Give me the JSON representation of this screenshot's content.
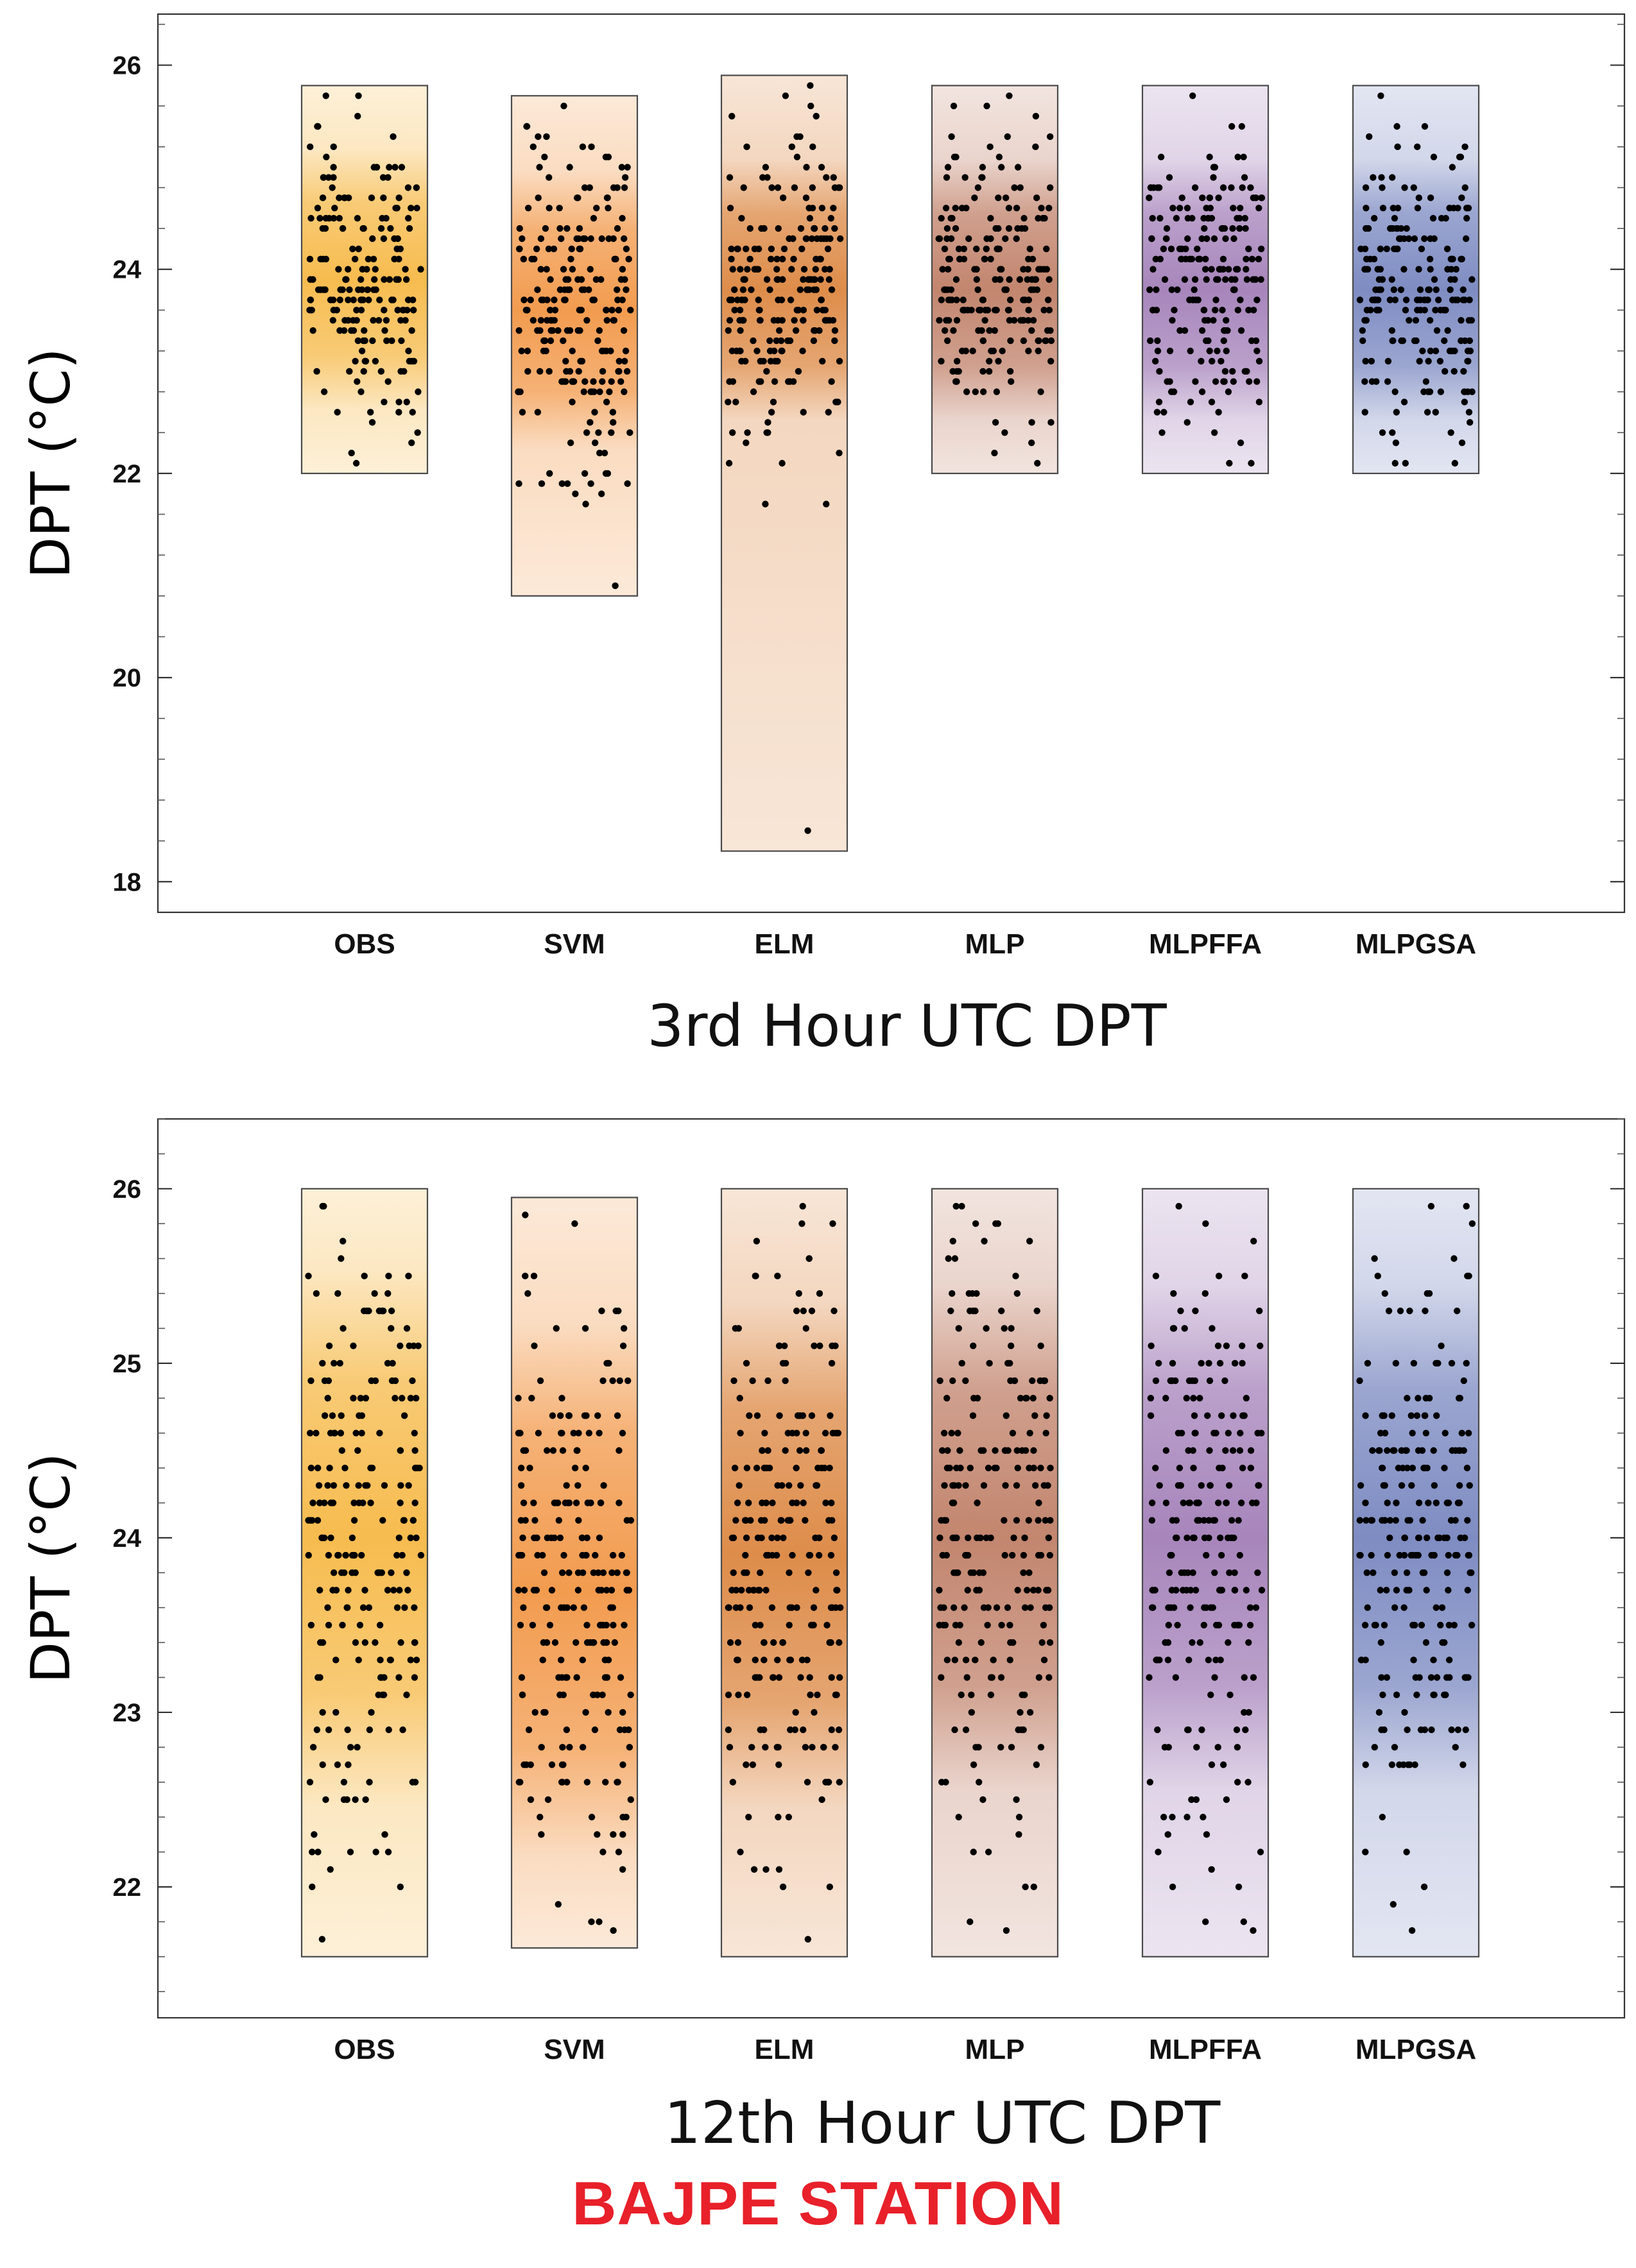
{
  "figure_title": "BAJPE STATION",
  "colors": {
    "title": "#e8202a",
    "OBS": "#f5b030",
    "SVM": "#f08a30",
    "ELM": "#d8782a",
    "MLP": "#b87055",
    "MLPFFA": "#9870b0",
    "MLPGSA": "#6878b8"
  },
  "chart_data": [
    {
      "type": "scatter",
      "subtype": "distribution-strip",
      "title": "3rd Hour UTC DPT",
      "xlabel": "3rd Hour UTC DPT",
      "ylabel": "DPT (°C)",
      "ylim": [
        17.7,
        26.5
      ],
      "yticks": [
        18,
        20,
        22,
        24,
        26
      ],
      "categories": [
        "OBS",
        "SVM",
        "ELM",
        "MLP",
        "MLPFFA",
        "MLPGSA"
      ],
      "series": [
        {
          "name": "OBS",
          "min": 22.0,
          "max": 25.8,
          "center": 23.9,
          "spread": 0.75,
          "points": 190,
          "outliers": [
            22.1,
            25.7
          ]
        },
        {
          "name": "SVM",
          "min": 20.8,
          "max": 25.7,
          "center": 23.6,
          "spread": 0.8,
          "points": 220,
          "outliers": [
            20.9,
            21.8,
            22.0,
            25.6
          ]
        },
        {
          "name": "ELM",
          "min": 18.3,
          "max": 25.9,
          "center": 23.8,
          "spread": 0.75,
          "points": 220,
          "outliers": [
            18.5,
            22.1,
            25.7
          ]
        },
        {
          "name": "MLP",
          "min": 22.0,
          "max": 25.8,
          "center": 23.8,
          "spread": 0.75,
          "points": 210,
          "outliers": [
            22.1,
            25.7
          ]
        },
        {
          "name": "MLPFFA",
          "min": 22.0,
          "max": 25.8,
          "center": 23.8,
          "spread": 0.75,
          "points": 210,
          "outliers": [
            22.1,
            25.7
          ]
        },
        {
          "name": "MLPGSA",
          "min": 22.0,
          "max": 25.8,
          "center": 23.8,
          "spread": 0.75,
          "points": 210,
          "outliers": [
            22.1,
            25.7
          ]
        }
      ]
    },
    {
      "type": "scatter",
      "subtype": "distribution-strip",
      "title": "12th Hour UTC DPT",
      "xlabel": "12th Hour UTC DPT",
      "ylabel": "DPT (°C)",
      "ylim": [
        21.25,
        26.4
      ],
      "yticks": [
        22,
        23,
        24,
        25,
        26
      ],
      "categories": [
        "OBS",
        "SVM",
        "ELM",
        "MLP",
        "MLPFFA",
        "MLPGSA"
      ],
      "series": [
        {
          "name": "OBS",
          "min": 21.6,
          "max": 26.0,
          "center": 24.0,
          "spread": 0.9,
          "points": 230,
          "outliers": [
            21.7,
            25.9
          ]
        },
        {
          "name": "SVM",
          "min": 21.65,
          "max": 25.95,
          "center": 23.7,
          "spread": 0.9,
          "points": 240,
          "outliers": [
            21.75,
            25.85
          ]
        },
        {
          "name": "ELM",
          "min": 21.6,
          "max": 26.0,
          "center": 23.9,
          "spread": 0.85,
          "points": 240,
          "outliers": [
            21.7,
            25.9
          ]
        },
        {
          "name": "MLP",
          "min": 21.6,
          "max": 26.0,
          "center": 24.0,
          "spread": 0.85,
          "points": 230,
          "outliers": [
            21.75,
            25.9
          ]
        },
        {
          "name": "MLPFFA",
          "min": 21.6,
          "max": 26.0,
          "center": 24.0,
          "spread": 0.85,
          "points": 230,
          "outliers": [
            21.75,
            25.9
          ]
        },
        {
          "name": "MLPGSA",
          "min": 21.6,
          "max": 26.0,
          "center": 24.0,
          "spread": 0.85,
          "points": 230,
          "outliers": [
            21.75,
            25.9
          ]
        }
      ]
    }
  ]
}
